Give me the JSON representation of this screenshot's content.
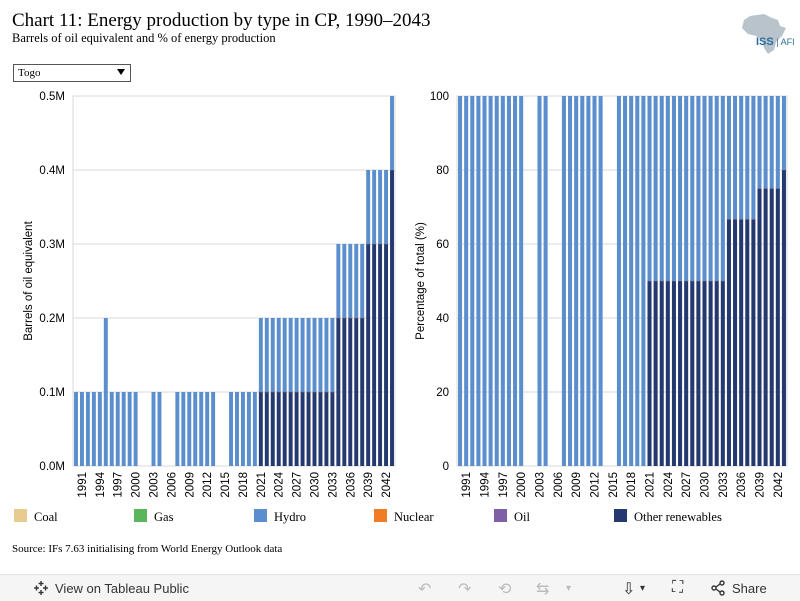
{
  "header": {
    "title": "Chart 11: Energy production by type in CP, 1990–2043",
    "subtitle": "Barrels of oil equivalent and % of energy production",
    "logo_text": "ISS",
    "logo_suffix": "AFI"
  },
  "filter": {
    "selected": "Togo"
  },
  "legend": [
    {
      "label": "Coal",
      "color": "#e8cc8f"
    },
    {
      "label": "Gas",
      "color": "#59b65c"
    },
    {
      "label": "Hydro",
      "color": "#5b8ecd"
    },
    {
      "label": "Nuclear",
      "color": "#f07c24"
    },
    {
      "label": "Oil",
      "color": "#7f5fa6"
    },
    {
      "label": "Other renewables",
      "color": "#23396f"
    }
  ],
  "source": "Source: IFs 7.63 initialising from World Energy Outlook data",
  "footer": {
    "view_label": "View on Tableau Public",
    "share_label": "Share"
  },
  "chart_data": [
    {
      "type": "bar",
      "stacked": true,
      "ylabel": "Barrels of oil equivalent",
      "ylim": [
        0,
        0.5
      ],
      "yticks": [
        0,
        0.1,
        0.2,
        0.3,
        0.4,
        0.5
      ],
      "ytick_labels": [
        "0.0M",
        "0.1M",
        "0.2M",
        "0.3M",
        "0.4M",
        "0.5M"
      ],
      "x_tick_labels": [
        "1991",
        "1994",
        "1997",
        "2000",
        "2003",
        "2006",
        "2009",
        "2012",
        "2015",
        "2018",
        "2021",
        "2024",
        "2027",
        "2030",
        "2033",
        "2036",
        "2039",
        "2042"
      ],
      "categories": [
        1990,
        1991,
        1992,
        1993,
        1994,
        1995,
        1996,
        1997,
        1998,
        1999,
        2000,
        2001,
        2002,
        2003,
        2004,
        2005,
        2006,
        2007,
        2008,
        2009,
        2010,
        2011,
        2012,
        2013,
        2014,
        2015,
        2016,
        2017,
        2018,
        2019,
        2020,
        2021,
        2022,
        2023,
        2024,
        2025,
        2026,
        2027,
        2028,
        2029,
        2030,
        2031,
        2032,
        2033,
        2034,
        2035,
        2036,
        2037,
        2038,
        2039,
        2040,
        2041,
        2042,
        2043
      ],
      "series": [
        {
          "name": "Other renewables",
          "values": [
            0,
            0,
            0,
            0,
            0,
            0,
            0,
            0,
            0,
            0,
            0,
            0,
            0,
            0,
            0,
            0,
            0,
            0,
            0,
            0,
            0,
            0,
            0,
            0,
            0,
            0,
            0,
            0,
            0,
            0,
            0,
            0.1,
            0.1,
            0.1,
            0.1,
            0.1,
            0.1,
            0.1,
            0.1,
            0.1,
            0.1,
            0.1,
            0.1,
            0.1,
            0.2,
            0.2,
            0.2,
            0.2,
            0.2,
            0.3,
            0.3,
            0.3,
            0.3,
            0.4
          ]
        },
        {
          "name": "Hydro",
          "values": [
            0.1,
            0.1,
            0.1,
            0.1,
            0.1,
            0.2,
            0.1,
            0.1,
            0.1,
            0.1,
            0.1,
            0,
            0,
            0.1,
            0.1,
            0,
            0,
            0.1,
            0.1,
            0.1,
            0.1,
            0.1,
            0.1,
            0.1,
            0,
            0,
            0.1,
            0.1,
            0.1,
            0.1,
            0.1,
            0.1,
            0.1,
            0.1,
            0.1,
            0.1,
            0.1,
            0.1,
            0.1,
            0.1,
            0.1,
            0.1,
            0.1,
            0.1,
            0.1,
            0.1,
            0.1,
            0.1,
            0.1,
            0.1,
            0.1,
            0.1,
            0.1,
            0.1
          ]
        }
      ]
    },
    {
      "type": "bar",
      "stacked": true,
      "ylabel": "Percentage of total (%)",
      "ylim": [
        0,
        100
      ],
      "yticks": [
        0,
        20,
        40,
        60,
        80,
        100
      ],
      "x_tick_labels": [
        "1991",
        "1994",
        "1997",
        "2000",
        "2003",
        "2006",
        "2009",
        "2012",
        "2015",
        "2018",
        "2021",
        "2024",
        "2027",
        "2030",
        "2033",
        "2036",
        "2039",
        "2042"
      ],
      "categories": [
        1990,
        1991,
        1992,
        1993,
        1994,
        1995,
        1996,
        1997,
        1998,
        1999,
        2000,
        2001,
        2002,
        2003,
        2004,
        2005,
        2006,
        2007,
        2008,
        2009,
        2010,
        2011,
        2012,
        2013,
        2014,
        2015,
        2016,
        2017,
        2018,
        2019,
        2020,
        2021,
        2022,
        2023,
        2024,
        2025,
        2026,
        2027,
        2028,
        2029,
        2030,
        2031,
        2032,
        2033,
        2034,
        2035,
        2036,
        2037,
        2038,
        2039,
        2040,
        2041,
        2042,
        2043
      ],
      "series": [
        {
          "name": "Other renewables",
          "values": [
            0,
            0,
            0,
            0,
            0,
            0,
            0,
            0,
            0,
            0,
            0,
            0,
            0,
            0,
            0,
            0,
            0,
            0,
            0,
            0,
            0,
            0,
            0,
            0,
            0,
            0,
            0,
            0,
            0,
            0,
            0,
            50,
            50,
            50,
            50,
            50,
            50,
            50,
            50,
            50,
            50,
            50,
            50,
            50,
            66.7,
            66.7,
            66.7,
            66.7,
            66.7,
            75,
            75,
            75,
            75,
            80
          ]
        },
        {
          "name": "Hydro",
          "values": [
            100,
            100,
            100,
            100,
            100,
            100,
            100,
            100,
            100,
            100,
            100,
            0,
            0,
            100,
            100,
            0,
            0,
            100,
            100,
            100,
            100,
            100,
            100,
            100,
            0,
            0,
            100,
            100,
            100,
            100,
            100,
            50,
            50,
            50,
            50,
            50,
            50,
            50,
            50,
            50,
            50,
            50,
            50,
            50,
            33.3,
            33.3,
            33.3,
            33.3,
            33.3,
            25,
            25,
            25,
            25,
            20
          ]
        }
      ]
    }
  ]
}
